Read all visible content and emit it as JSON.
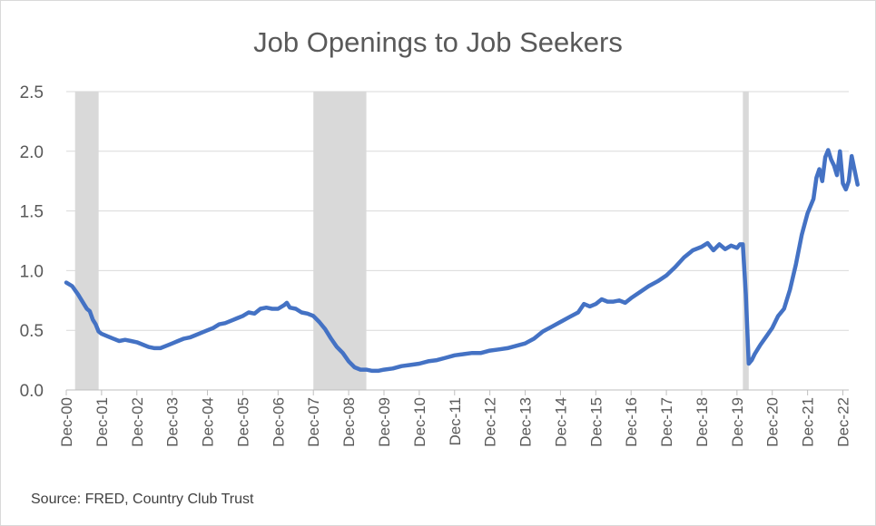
{
  "chart_data": {
    "type": "line",
    "title": "Job Openings to Job Seekers",
    "source": "Source: FRED, Country Club Trust",
    "xlabel": "",
    "ylabel": "",
    "ylim": [
      0,
      2.5
    ],
    "yticks": [
      "0.0",
      "0.5",
      "1.0",
      "1.5",
      "2.0",
      "2.5"
    ],
    "xlim": [
      "2000-12",
      "2023-02"
    ],
    "xticks": [
      "Dec-00",
      "Dec-01",
      "Dec-02",
      "Dec-03",
      "Dec-04",
      "Dec-05",
      "Dec-06",
      "Dec-07",
      "Dec-08",
      "Dec-09",
      "Dec-10",
      "Dec-11",
      "Dec-12",
      "Dec-13",
      "Dec-14",
      "Dec-15",
      "Dec-16",
      "Dec-17",
      "Dec-18",
      "Dec-19",
      "Dec-20",
      "Dec-21",
      "Dec-22"
    ],
    "grid": "horizontal",
    "recessions": [
      [
        "2001-03",
        "2001-11"
      ],
      [
        "2007-12",
        "2009-06"
      ],
      [
        "2020-02",
        "2020-04"
      ]
    ],
    "colors": {
      "line": "#4472C4",
      "recession": "#D9D9D9",
      "grid": "#D9D9D9",
      "axis": "#BFBFBF"
    },
    "series": [
      {
        "points": [
          [
            "2000-12",
            0.9
          ],
          [
            "2001-02",
            0.87
          ],
          [
            "2001-04",
            0.8
          ],
          [
            "2001-06",
            0.72
          ],
          [
            "2001-07",
            0.68
          ],
          [
            "2001-08",
            0.66
          ],
          [
            "2001-09",
            0.59
          ],
          [
            "2001-10",
            0.55
          ],
          [
            "2001-11",
            0.49
          ],
          [
            "2001-12",
            0.47
          ],
          [
            "2002-02",
            0.45
          ],
          [
            "2002-04",
            0.43
          ],
          [
            "2002-06",
            0.41
          ],
          [
            "2002-08",
            0.42
          ],
          [
            "2002-10",
            0.41
          ],
          [
            "2002-12",
            0.4
          ],
          [
            "2003-02",
            0.38
          ],
          [
            "2003-04",
            0.36
          ],
          [
            "2003-06",
            0.35
          ],
          [
            "2003-08",
            0.35
          ],
          [
            "2003-10",
            0.37
          ],
          [
            "2003-12",
            0.39
          ],
          [
            "2004-02",
            0.41
          ],
          [
            "2004-04",
            0.43
          ],
          [
            "2004-06",
            0.44
          ],
          [
            "2004-08",
            0.46
          ],
          [
            "2004-10",
            0.48
          ],
          [
            "2004-12",
            0.5
          ],
          [
            "2005-02",
            0.52
          ],
          [
            "2005-04",
            0.55
          ],
          [
            "2005-06",
            0.56
          ],
          [
            "2005-08",
            0.58
          ],
          [
            "2005-10",
            0.6
          ],
          [
            "2005-12",
            0.62
          ],
          [
            "2006-02",
            0.65
          ],
          [
            "2006-04",
            0.64
          ],
          [
            "2006-06",
            0.68
          ],
          [
            "2006-08",
            0.69
          ],
          [
            "2006-10",
            0.68
          ],
          [
            "2006-12",
            0.68
          ],
          [
            "2007-02",
            0.71
          ],
          [
            "2007-03",
            0.73
          ],
          [
            "2007-04",
            0.69
          ],
          [
            "2007-06",
            0.68
          ],
          [
            "2007-08",
            0.65
          ],
          [
            "2007-10",
            0.64
          ],
          [
            "2007-12",
            0.62
          ],
          [
            "2008-02",
            0.57
          ],
          [
            "2008-04",
            0.51
          ],
          [
            "2008-06",
            0.43
          ],
          [
            "2008-08",
            0.36
          ],
          [
            "2008-10",
            0.31
          ],
          [
            "2008-12",
            0.24
          ],
          [
            "2009-02",
            0.19
          ],
          [
            "2009-04",
            0.17
          ],
          [
            "2009-06",
            0.17
          ],
          [
            "2009-08",
            0.16
          ],
          [
            "2009-10",
            0.16
          ],
          [
            "2009-12",
            0.17
          ],
          [
            "2010-03",
            0.18
          ],
          [
            "2010-06",
            0.2
          ],
          [
            "2010-09",
            0.21
          ],
          [
            "2010-12",
            0.22
          ],
          [
            "2011-03",
            0.24
          ],
          [
            "2011-06",
            0.25
          ],
          [
            "2011-09",
            0.27
          ],
          [
            "2011-12",
            0.29
          ],
          [
            "2012-03",
            0.3
          ],
          [
            "2012-06",
            0.31
          ],
          [
            "2012-09",
            0.31
          ],
          [
            "2012-12",
            0.33
          ],
          [
            "2013-03",
            0.34
          ],
          [
            "2013-06",
            0.35
          ],
          [
            "2013-09",
            0.37
          ],
          [
            "2013-12",
            0.39
          ],
          [
            "2014-03",
            0.43
          ],
          [
            "2014-06",
            0.49
          ],
          [
            "2014-09",
            0.53
          ],
          [
            "2014-12",
            0.57
          ],
          [
            "2015-03",
            0.61
          ],
          [
            "2015-06",
            0.65
          ],
          [
            "2015-08",
            0.72
          ],
          [
            "2015-10",
            0.7
          ],
          [
            "2015-12",
            0.72
          ],
          [
            "2016-02",
            0.76
          ],
          [
            "2016-04",
            0.74
          ],
          [
            "2016-06",
            0.74
          ],
          [
            "2016-08",
            0.75
          ],
          [
            "2016-10",
            0.73
          ],
          [
            "2016-12",
            0.77
          ],
          [
            "2017-03",
            0.82
          ],
          [
            "2017-06",
            0.87
          ],
          [
            "2017-09",
            0.91
          ],
          [
            "2017-12",
            0.96
          ],
          [
            "2018-03",
            1.03
          ],
          [
            "2018-06",
            1.11
          ],
          [
            "2018-09",
            1.17
          ],
          [
            "2018-12",
            1.2
          ],
          [
            "2019-02",
            1.23
          ],
          [
            "2019-04",
            1.17
          ],
          [
            "2019-06",
            1.22
          ],
          [
            "2019-08",
            1.18
          ],
          [
            "2019-10",
            1.21
          ],
          [
            "2019-12",
            1.19
          ],
          [
            "2020-01",
            1.22
          ],
          [
            "2020-02",
            1.22
          ],
          [
            "2020-03",
            0.8
          ],
          [
            "2020-04",
            0.22
          ],
          [
            "2020-05",
            0.25
          ],
          [
            "2020-06",
            0.3
          ],
          [
            "2020-08",
            0.38
          ],
          [
            "2020-10",
            0.45
          ],
          [
            "2020-12",
            0.52
          ],
          [
            "2021-02",
            0.62
          ],
          [
            "2021-04",
            0.68
          ],
          [
            "2021-06",
            0.84
          ],
          [
            "2021-08",
            1.05
          ],
          [
            "2021-10",
            1.3
          ],
          [
            "2021-12",
            1.48
          ],
          [
            "2022-02",
            1.6
          ],
          [
            "2022-03",
            1.78
          ],
          [
            "2022-04",
            1.85
          ],
          [
            "2022-05",
            1.75
          ],
          [
            "2022-06",
            1.95
          ],
          [
            "2022-07",
            2.01
          ],
          [
            "2022-08",
            1.93
          ],
          [
            "2022-09",
            1.88
          ],
          [
            "2022-10",
            1.8
          ],
          [
            "2022-11",
            2.0
          ],
          [
            "2022-12",
            1.73
          ],
          [
            "2023-01",
            1.68
          ],
          [
            "2023-02",
            1.75
          ],
          [
            "2023-03",
            1.96
          ],
          [
            "2023-04",
            1.84
          ],
          [
            "2023-05",
            1.72
          ]
        ]
      }
    ]
  }
}
